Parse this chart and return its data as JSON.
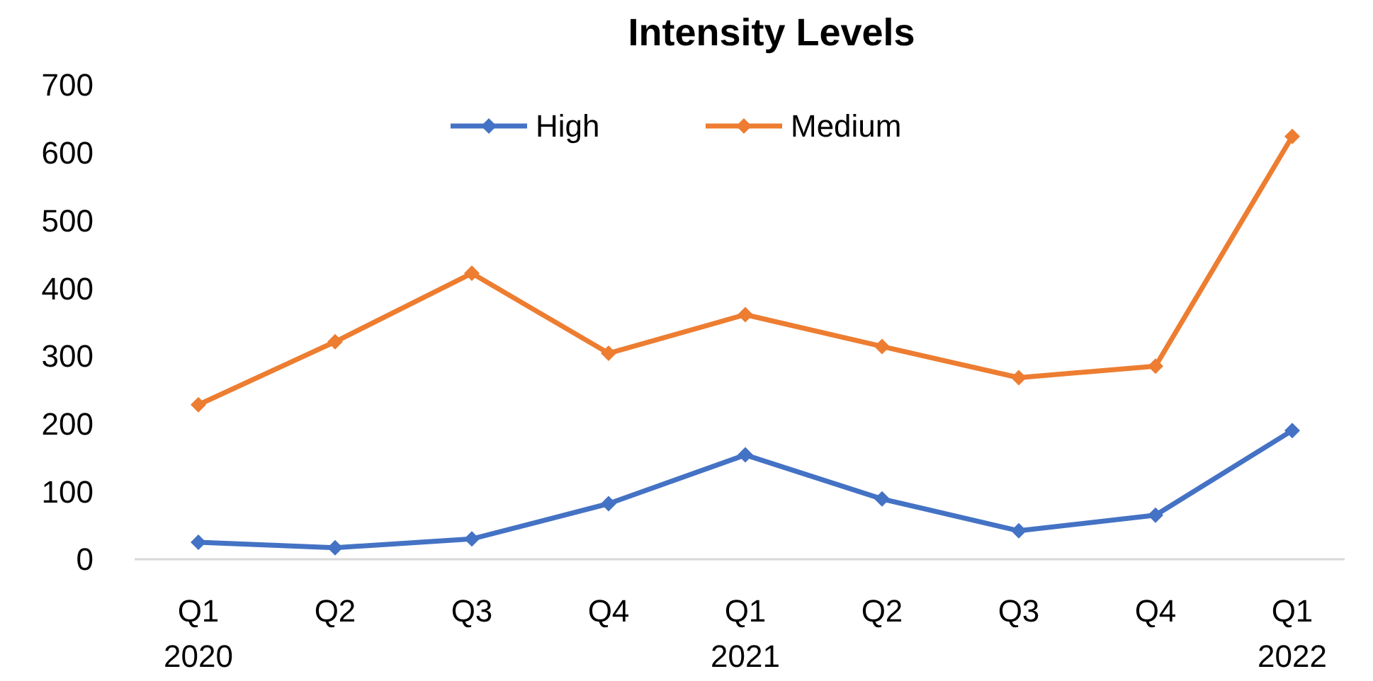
{
  "chart_data": {
    "type": "line",
    "title": "Intensity Levels",
    "categories": [
      "Q1\n2020",
      "Q2",
      "Q3",
      "Q4",
      "Q1\n2021",
      "Q2",
      "Q3",
      "Q4",
      "Q1\n2022"
    ],
    "series": [
      {
        "name": "High",
        "color": "#4472c4",
        "values": [
          25,
          17,
          30,
          82,
          154,
          89,
          42,
          65,
          190
        ]
      },
      {
        "name": "Medium",
        "color": "#ed7d31",
        "values": [
          228,
          321,
          422,
          304,
          361,
          314,
          268,
          285,
          624
        ]
      }
    ],
    "ylim": [
      0,
      700
    ],
    "yticks": [
      0,
      100,
      200,
      300,
      400,
      500,
      600,
      700
    ],
    "grid": false,
    "legend": "top",
    "marker": "diamond",
    "line_style": "solid"
  }
}
